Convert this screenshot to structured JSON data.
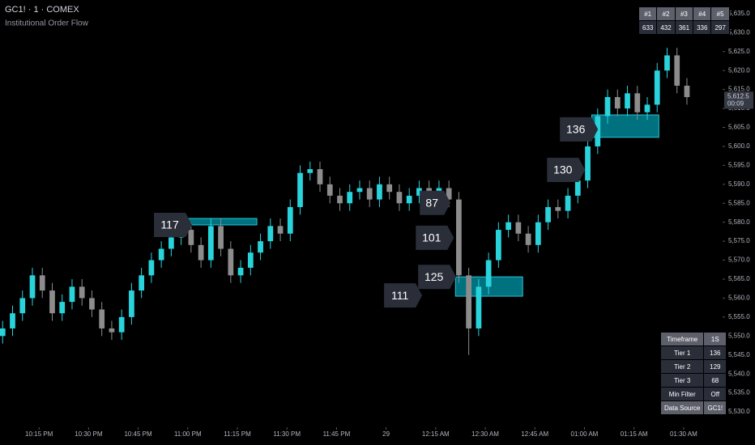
{
  "chart_data": {
    "type": "candlestick",
    "title": "GC1! · 1 · COMEX",
    "subtitle": "Institutional Order Flow",
    "up_color": "#29d3dc",
    "down_color": "#8c8c8c",
    "x": [
      4,
      7,
      10,
      13,
      16,
      19,
      22,
      25,
      28,
      31,
      34,
      37,
      40,
      43,
      46,
      49,
      52,
      55,
      58,
      61,
      64,
      67,
      70,
      73,
      76,
      79,
      82,
      85,
      88,
      91,
      94,
      97,
      100,
      103,
      106,
      109,
      112,
      115,
      118,
      121,
      124,
      127,
      130,
      133,
      136,
      139,
      142,
      145,
      148,
      151,
      154,
      157,
      160,
      163,
      166,
      169,
      172,
      175,
      178,
      181,
      184,
      187,
      190,
      193,
      196,
      199,
      202,
      205,
      208,
      211
    ],
    "open": [
      5550,
      5552,
      5556,
      5560,
      5566,
      5562,
      5556,
      5559,
      5563,
      5560,
      5557,
      5552,
      5551,
      5555,
      5562,
      5566,
      5570,
      5573,
      5576,
      5578,
      5574,
      5570,
      5579,
      5573,
      5566,
      5568,
      5572,
      5575,
      5579,
      5577,
      5584,
      5593,
      5594,
      5590,
      5587,
      5585,
      5588,
      5589,
      5586,
      5590,
      5588,
      5585,
      5587,
      5589,
      5588,
      5589,
      5586,
      5566,
      5552,
      5563,
      5570,
      5578,
      5580,
      5577,
      5574,
      5580,
      5584,
      5583,
      5587,
      5591,
      5600,
      5608,
      5613,
      5610,
      5614,
      5609,
      5611,
      5620,
      5624,
      5616
    ],
    "high": [
      5554,
      5558,
      5562,
      5568,
      5568,
      5564,
      5561,
      5565,
      5565,
      5562,
      5559,
      5554,
      5557,
      5564,
      5568,
      5572,
      5575,
      5578,
      5580,
      5580,
      5576,
      5581,
      5581,
      5575,
      5570,
      5574,
      5577,
      5581,
      5581,
      5586,
      5595,
      5596,
      5596,
      5592,
      5589,
      5590,
      5591,
      5591,
      5592,
      5592,
      5590,
      5589,
      5591,
      5591,
      5591,
      5591,
      5588,
      5568,
      5565,
      5572,
      5580,
      5582,
      5582,
      5579,
      5582,
      5586,
      5586,
      5589,
      5593,
      5602,
      5610,
      5615,
      5615,
      5616,
      5616,
      5613,
      5622,
      5626,
      5626,
      5618
    ],
    "low": [
      5548,
      5550,
      5554,
      5558,
      5560,
      5554,
      5554,
      5557,
      5558,
      5555,
      5550,
      5549,
      5549,
      5553,
      5560,
      5564,
      5568,
      5571,
      5574,
      5572,
      5568,
      5568,
      5571,
      5564,
      5564,
      5566,
      5570,
      5573,
      5575,
      5575,
      5582,
      5591,
      5588,
      5585,
      5583,
      5583,
      5586,
      5584,
      5584,
      5586,
      5583,
      5583,
      5585,
      5586,
      5586,
      5584,
      5564,
      5545,
      5550,
      5561,
      5568,
      5576,
      5575,
      5572,
      5572,
      5578,
      5581,
      5581,
      5585,
      5589,
      5598,
      5606,
      5608,
      5608,
      5607,
      5607,
      5609,
      5618,
      5614,
      5611
    ],
    "close": [
      5552,
      5556,
      5560,
      5566,
      5562,
      5556,
      5559,
      5563,
      5560,
      5557,
      5552,
      5551,
      5555,
      5562,
      5566,
      5570,
      5573,
      5576,
      5578,
      5574,
      5570,
      5579,
      5573,
      5566,
      5568,
      5572,
      5575,
      5579,
      5577,
      5584,
      5593,
      5594,
      5590,
      5587,
      5585,
      5588,
      5589,
      5586,
      5590,
      5588,
      5585,
      5587,
      5589,
      5588,
      5589,
      5586,
      5566,
      5552,
      5563,
      5570,
      5578,
      5580,
      5577,
      5574,
      5580,
      5584,
      5583,
      5587,
      5591,
      5600,
      5608,
      5613,
      5610,
      5614,
      5609,
      5611,
      5620,
      5624,
      5616,
      5613
    ],
    "xlim": [
      3.2,
      221.3
    ],
    "ylim": [
      5526.6,
      5638.6
    ],
    "xticks": [
      {
        "value": 15,
        "label": "10:15 PM"
      },
      {
        "value": 30,
        "label": "10:30 PM"
      },
      {
        "value": 45,
        "label": "10:45 PM"
      },
      {
        "value": 60,
        "label": "11:00 PM"
      },
      {
        "value": 75,
        "label": "11:15 PM"
      },
      {
        "value": 90,
        "label": "11:30 PM"
      },
      {
        "value": 105,
        "label": "11:45 PM"
      },
      {
        "value": 120,
        "label": "29"
      },
      {
        "value": 135,
        "label": "12:15 AM"
      },
      {
        "value": 150,
        "label": "12:30 AM"
      },
      {
        "value": 165,
        "label": "12:45 AM"
      },
      {
        "value": 180,
        "label": "01:00 AM"
      },
      {
        "value": 195,
        "label": "01:15 AM"
      },
      {
        "value": 210,
        "label": "01:30 AM"
      }
    ],
    "yticks": [
      {
        "value": 5530,
        "label": "5,530.0"
      },
      {
        "value": 5535,
        "label": "5,535.0"
      },
      {
        "value": 5540,
        "label": "5,540.0"
      },
      {
        "value": 5545,
        "label": "5,545.0"
      },
      {
        "value": 5550,
        "label": "5,550.0"
      },
      {
        "value": 5555,
        "label": "5,555.0"
      },
      {
        "value": 5560,
        "label": "5,560.0"
      },
      {
        "value": 5565,
        "label": "5,565.0"
      },
      {
        "value": 5570,
        "label": "5,570.0"
      },
      {
        "value": 5575,
        "label": "5,575.0"
      },
      {
        "value": 5580,
        "label": "5,580.0"
      },
      {
        "value": 5585,
        "label": "5,585.0"
      },
      {
        "value": 5590,
        "label": "5,590.0"
      },
      {
        "value": 5595,
        "label": "5,595.0"
      },
      {
        "value": 5600,
        "label": "5,600.0"
      },
      {
        "value": 5605,
        "label": "5,605.0"
      },
      {
        "value": 5610,
        "label": "5,610.0"
      },
      {
        "value": 5615,
        "label": "5,615.0"
      },
      {
        "value": 5620,
        "label": "5,620.0"
      },
      {
        "value": 5625,
        "label": "5,625.0"
      },
      {
        "value": 5630,
        "label": "5,630.0"
      },
      {
        "value": 5635,
        "label": "5,635.0"
      }
    ],
    "last_price": {
      "value": 5612.5,
      "label": "5,612.5"
    },
    "countdown": "00:09",
    "zones": [
      {
        "x0": 60.3,
        "x1": 80.9,
        "y0": 5579.3,
        "y1": 5581.0
      },
      {
        "x0": 141,
        "x1": 161.3,
        "y0": 5560.5,
        "y1": 5565.6
      },
      {
        "x0": 182.2,
        "x1": 202.5,
        "y0": 5602.4,
        "y1": 5608.3
      }
    ],
    "annotations": [
      {
        "label": 117,
        "x": 61.3,
        "y": 5579.3
      },
      {
        "label": 87,
        "x": 139.5,
        "y": 5585.1
      },
      {
        "label": 101,
        "x": 140.5,
        "y": 5575.9
      },
      {
        "label": 125,
        "x": 141.2,
        "y": 5565.6
      },
      {
        "label": 111,
        "x": 130.9,
        "y": 5560.7
      },
      {
        "label": 130,
        "x": 180.2,
        "y": 5593.8
      },
      {
        "label": 136,
        "x": 184.1,
        "y": 5604.5
      }
    ],
    "rank_table": {
      "headers": [
        "#1",
        "#2",
        "#3",
        "#4",
        "#5"
      ],
      "values": [
        633,
        432,
        361,
        336,
        297
      ]
    },
    "settings_table": {
      "rows": [
        [
          "Timeframe",
          "1S"
        ],
        [
          "Tier 1",
          "136"
        ],
        [
          "Tier 2",
          "129"
        ],
        [
          "Tier 3",
          "68"
        ],
        [
          "Min Filter",
          "Off"
        ],
        [
          "Data Source",
          "GC1!"
        ]
      ]
    }
  }
}
